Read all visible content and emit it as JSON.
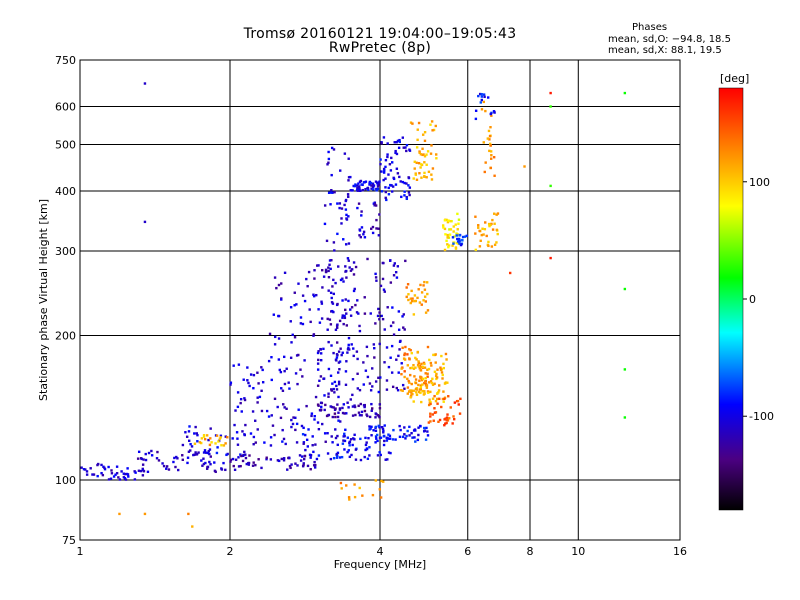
{
  "chart_data": {
    "type": "scatter",
    "title": "Tromsø 20160121 19:04:00–19:05:43",
    "subtitle": "RwPretec (8p)",
    "xlabel": "Frequency [MHz]",
    "ylabel": "Stationary phase Virtual Height [km]",
    "x_scale": "log",
    "y_scale": "log",
    "xlim": [
      1,
      16
    ],
    "ylim": [
      75,
      750
    ],
    "grid": true,
    "x_ticks": [
      1,
      2,
      4,
      6,
      8,
      10,
      16
    ],
    "x_gridlines": [
      2,
      4,
      6,
      8,
      10
    ],
    "y_ticks": [
      75,
      100,
      200,
      300,
      400,
      500,
      600,
      750
    ],
    "colorbar": {
      "label": "[deg]",
      "range": [
        -180,
        180
      ],
      "ticks": [
        100,
        0,
        -100
      ]
    },
    "phase_stats": {
      "title": "Phases",
      "o_line": "mean, sd,O: −94.8, 18.5",
      "x_line": "mean, sd,X:  88.1, 19.5"
    },
    "clusters": [
      {
        "x": [
          1.0,
          1.35
        ],
        "y": [
          100,
          108
        ],
        "phase": -105,
        "n": 45
      },
      {
        "x": [
          1.3,
          2.0
        ],
        "y": [
          104,
          115
        ],
        "phase": -110,
        "n": 60
      },
      {
        "x": [
          1.6,
          2.2
        ],
        "y": [
          112,
          130
        ],
        "phase": -100,
        "n": 35
      },
      {
        "x": [
          1.7,
          2.0
        ],
        "y": [
          118,
          124
        ],
        "phase": 110,
        "n": 20
      },
      {
        "x": [
          2.0,
          3.0
        ],
        "y": [
          105,
          113
        ],
        "phase": -115,
        "n": 60
      },
      {
        "x": [
          2.0,
          3.5
        ],
        "y": [
          118,
          180
        ],
        "phase": -105,
        "n": 130
      },
      {
        "x": [
          2.4,
          3.6
        ],
        "y": [
          180,
          280
        ],
        "phase": -110,
        "n": 90
      },
      {
        "x": [
          2.8,
          4.2
        ],
        "y": [
          110,
          125
        ],
        "phase": -95,
        "n": 70
      },
      {
        "x": [
          3.0,
          4.0
        ],
        "y": [
          135,
          145
        ],
        "phase": -120,
        "n": 60
      },
      {
        "x": [
          3.0,
          4.5
        ],
        "y": [
          150,
          290
        ],
        "phase": -110,
        "n": 170
      },
      {
        "x": [
          3.1,
          3.5
        ],
        "y": [
          300,
          500
        ],
        "phase": -105,
        "n": 45
      },
      {
        "x": [
          3.5,
          4.0
        ],
        "y": [
          400,
          420
        ],
        "phase": -100,
        "n": 50
      },
      {
        "x": [
          3.6,
          4.0
        ],
        "y": [
          320,
          380
        ],
        "phase": -110,
        "n": 25
      },
      {
        "x": [
          3.8,
          5.0
        ],
        "y": [
          120,
          130
        ],
        "phase": -90,
        "n": 60
      },
      {
        "x": [
          4.0,
          4.6
        ],
        "y": [
          380,
          520
        ],
        "phase": -100,
        "n": 70
      },
      {
        "x": [
          4.4,
          5.0
        ],
        "y": [
          150,
          190
        ],
        "phase": 130,
        "n": 60
      },
      {
        "x": [
          4.6,
          5.5
        ],
        "y": [
          145,
          185
        ],
        "phase": 110,
        "n": 100
      },
      {
        "x": [
          4.5,
          5.0
        ],
        "y": [
          220,
          260
        ],
        "phase": 120,
        "n": 30
      },
      {
        "x": [
          4.6,
          5.2
        ],
        "y": [
          420,
          560
        ],
        "phase": 110,
        "n": 50
      },
      {
        "x": [
          5.0,
          5.8
        ],
        "y": [
          130,
          150
        ],
        "phase": 150,
        "n": 40
      },
      {
        "x": [
          5.3,
          5.8
        ],
        "y": [
          300,
          360
        ],
        "phase": 85,
        "n": 40
      },
      {
        "x": [
          5.6,
          6.0
        ],
        "y": [
          305,
          330
        ],
        "phase": -80,
        "n": 20
      },
      {
        "x": [
          6.2,
          6.9
        ],
        "y": [
          300,
          360
        ],
        "phase": 110,
        "n": 35
      },
      {
        "x": [
          6.3,
          6.8
        ],
        "y": [
          430,
          620
        ],
        "phase": 120,
        "n": 25
      },
      {
        "x": [
          6.2,
          6.8
        ],
        "y": [
          560,
          640
        ],
        "phase": -90,
        "n": 15
      },
      {
        "x": [
          3.3,
          4.2
        ],
        "y": [
          90,
          100
        ],
        "phase": 120,
        "n": 15
      }
    ],
    "isolated_points": [
      {
        "x": 1.35,
        "y": 670,
        "phase": -110
      },
      {
        "x": 1.35,
        "y": 345,
        "phase": -110
      },
      {
        "x": 1.2,
        "y": 85,
        "phase": 120
      },
      {
        "x": 1.35,
        "y": 85,
        "phase": 120
      },
      {
        "x": 1.65,
        "y": 85,
        "phase": 130
      },
      {
        "x": 1.68,
        "y": 80,
        "phase": 110
      },
      {
        "x": 8.8,
        "y": 640,
        "phase": 170
      },
      {
        "x": 8.8,
        "y": 600,
        "phase": 30
      },
      {
        "x": 8.8,
        "y": 410,
        "phase": 30
      },
      {
        "x": 8.8,
        "y": 290,
        "phase": 170
      },
      {
        "x": 12.4,
        "y": 640,
        "phase": 20
      },
      {
        "x": 12.4,
        "y": 250,
        "phase": 20
      },
      {
        "x": 12.4,
        "y": 170,
        "phase": 20
      },
      {
        "x": 12.4,
        "y": 135,
        "phase": 20
      },
      {
        "x": 7.3,
        "y": 270,
        "phase": 160
      },
      {
        "x": 7.8,
        "y": 450,
        "phase": 120
      }
    ]
  }
}
